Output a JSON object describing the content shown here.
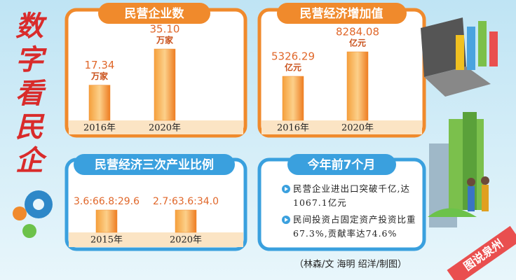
{
  "heading": "数字看民企",
  "chart_data": [
    {
      "type": "bar",
      "title": "民营企业数",
      "categories": [
        "2016年",
        "2020年"
      ],
      "values": [
        17.34,
        35.1
      ],
      "value_labels": [
        "17.34",
        "35.10"
      ],
      "unit": "万家",
      "color": "#f08a2c"
    },
    {
      "type": "bar",
      "title": "民营经济增加值",
      "categories": [
        "2016年",
        "2020年"
      ],
      "values": [
        5326.29,
        8284.08
      ],
      "value_labels": [
        "5326.29",
        "8284.08"
      ],
      "unit": "亿元",
      "color": "#f08a2c"
    },
    {
      "type": "ratio",
      "title": "民营经济三次产业比例",
      "categories": [
        "2015年",
        "2020年"
      ],
      "labels": [
        "3.6:66.8:29.6",
        "2.7:63.6:34.0"
      ],
      "color": "#f08a2c"
    }
  ],
  "panel": {
    "title": "今年前7个月",
    "items": [
      "民营企业进出口突破千亿,达1067.1亿元",
      "民间投资占固定资产投资比重67.3%,贡献率达74.6%"
    ]
  },
  "credit": "（林森/文 海明 绍洋/制图）",
  "badge": "图说泉州"
}
